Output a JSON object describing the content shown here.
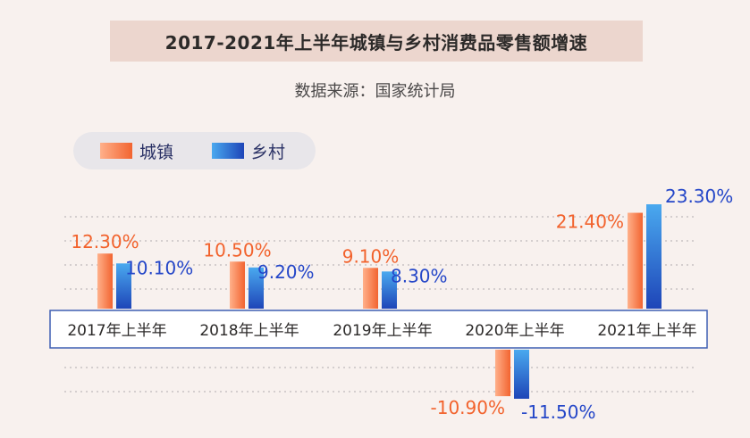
{
  "title": "2017-2021年上半年城镇与乡村消费品零售额增速",
  "subtitle": "数据来源：国家统计局",
  "colors": {
    "urban": "#f26430",
    "urban_light": "#ffb08a",
    "rural": "#1e45b8",
    "rural_light": "#4aa9ef",
    "urban_label": "#f2622c",
    "rural_label": "#2446c8",
    "axis_text": "#2c2a29",
    "axis_border": "#3e5fb3",
    "gridline": "#c7c3c4"
  },
  "chart_data": {
    "type": "bar",
    "categories": [
      "2017年上半年",
      "2018年上半年",
      "2019年上半年",
      "2020年上半年",
      "2021年上半年"
    ],
    "series": [
      {
        "name": "城镇",
        "values": [
          12.3,
          10.5,
          9.1,
          -10.9,
          21.4
        ],
        "labels": [
          "12.30%",
          "10.50%",
          "9.10%",
          "-10.90%",
          "21.40%"
        ]
      },
      {
        "name": "乡村",
        "values": [
          10.1,
          9.2,
          8.3,
          -11.5,
          23.3
        ],
        "labels": [
          "10.10%",
          "9.20%",
          "8.30%",
          "-11.50%",
          "23.30%"
        ]
      }
    ],
    "legend_position": "top-left",
    "grid": true
  }
}
